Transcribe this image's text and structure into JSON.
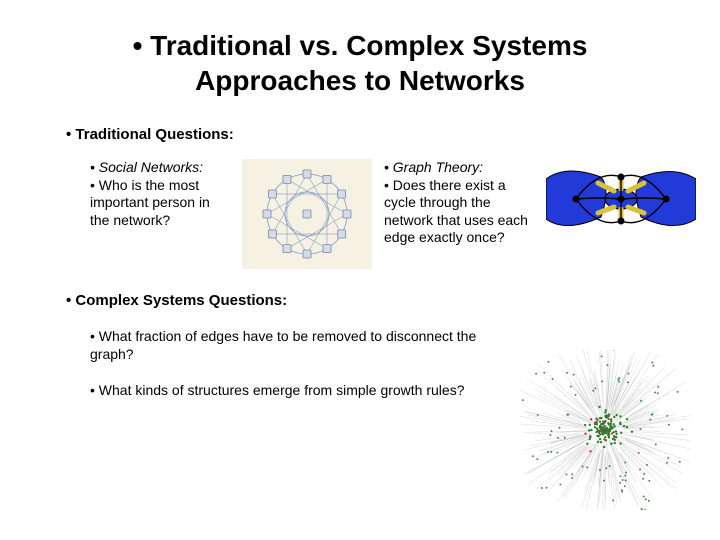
{
  "title_line1": "• Traditional vs. Complex Systems",
  "title_line2": "Approaches to Networks",
  "subhead_traditional": "• Traditional Questions:",
  "left": {
    "heading": "• Social Networks:",
    "body": "• Who is the most important person in the network?"
  },
  "right": {
    "heading": "• Graph Theory:",
    "body": "• Does there exist a cycle through the network that uses each edge exactly once?"
  },
  "subhead_complex": "• Complex Systems Questions:",
  "q1": "• What fraction of edges have to be removed to disconnect the graph?",
  "q2": "• What kinds of structures emerge from simple growth rules?",
  "circle_diagram": {
    "bg": "#f5f2e3",
    "ring": "#9aa7c7",
    "node_fill": "#d6dbe6",
    "node_stroke": "#7788aa",
    "nodes": 12
  },
  "bridges_diagram": {
    "land": "#223bd8",
    "land_stroke": "#000000",
    "bridge": "#d9c23a",
    "arc": "#000000"
  },
  "scatter_diagram": {
    "core": "#2e7d32",
    "edge": "#b0b0b0",
    "accent": "#d32f2f",
    "count_core": 180,
    "count_outer": 220
  }
}
